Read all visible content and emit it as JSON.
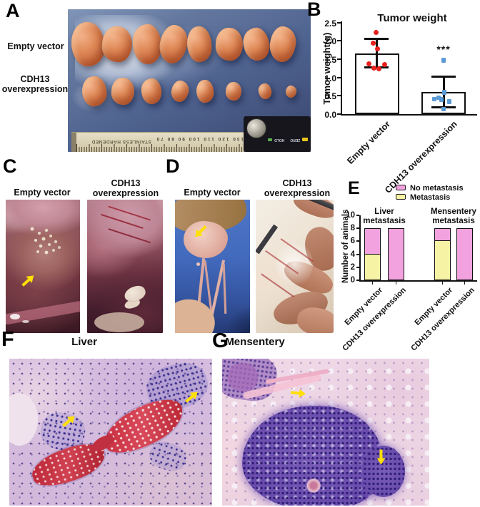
{
  "panels": {
    "a": {
      "label": "A",
      "rows": [
        {
          "label": "Empty vector",
          "tumor_count": 8
        },
        {
          "label": "CDH13 overexpression",
          "tumor_count": 8
        }
      ],
      "ruler": {
        "brand_text": "STAINLESS HARDENED",
        "numbers": "150 140 130 120 110 100 90 80 70",
        "hold_label": "HOLD",
        "zero_label": "ZERO"
      }
    },
    "b": {
      "label": "B"
    },
    "c": {
      "label": "C",
      "columns": [
        "Empty vector",
        "CDH13 overexpression"
      ],
      "caption": "Liver"
    },
    "d": {
      "label": "D",
      "columns": [
        "Empty vector",
        "CDH13 overexpression"
      ],
      "caption": "Mensentery"
    },
    "e": {
      "label": "E"
    },
    "f": {
      "label": "F"
    },
    "g": {
      "label": "G"
    }
  },
  "chart_data": [
    {
      "type": "bar",
      "panel": "B",
      "title": "Tumor weight",
      "ylabel": "Tumor weight(g)",
      "ylim": [
        0,
        2.5
      ],
      "yticks": [
        "0.0",
        "0.5",
        "1.0",
        "1.5",
        "2.0",
        "2.5"
      ],
      "categories": [
        "Empty vector",
        "CDH13 overexpression"
      ],
      "bar_means": [
        1.65,
        0.6
      ],
      "error_low": [
        1.28,
        0.18
      ],
      "error_high": [
        2.06,
        1.02
      ],
      "scatter": [
        {
          "color": "#e8211d",
          "shape": "circle",
          "values": [
            2.24,
            1.93,
            1.78,
            1.38,
            1.36,
            1.26,
            1.24
          ]
        },
        {
          "color": "#5b9bd5",
          "shape": "square",
          "values": [
            1.47,
            0.6,
            0.45,
            0.41,
            0.4,
            0.34,
            0.14
          ]
        }
      ],
      "significance": {
        "label": "***",
        "category": "CDH13 overexpression"
      },
      "bar_fill": "#ffffff",
      "axis_color": "#111111"
    },
    {
      "type": "stacked-bar",
      "panel": "E",
      "ylabel": "Number of animals",
      "ylim": [
        0,
        10
      ],
      "yticks": [
        0,
        2,
        4,
        6,
        8,
        10
      ],
      "groups": [
        {
          "title": "Liver metastasis",
          "categories": [
            "Empty vector",
            "CDH13 overexpression"
          ],
          "metastasis": [
            4,
            0
          ],
          "no_metastasis": [
            4,
            8
          ]
        },
        {
          "title": "Mensentery metastasis",
          "categories": [
            "Empty vector",
            "CDH13 overexpression"
          ],
          "metastasis": [
            6,
            0
          ],
          "no_metastasis": [
            2,
            8
          ]
        }
      ],
      "legend": [
        {
          "label": "No metastasis",
          "color": "#f2a2de"
        },
        {
          "label": "Metastasis",
          "color": "#f6f3a4"
        }
      ]
    }
  ]
}
